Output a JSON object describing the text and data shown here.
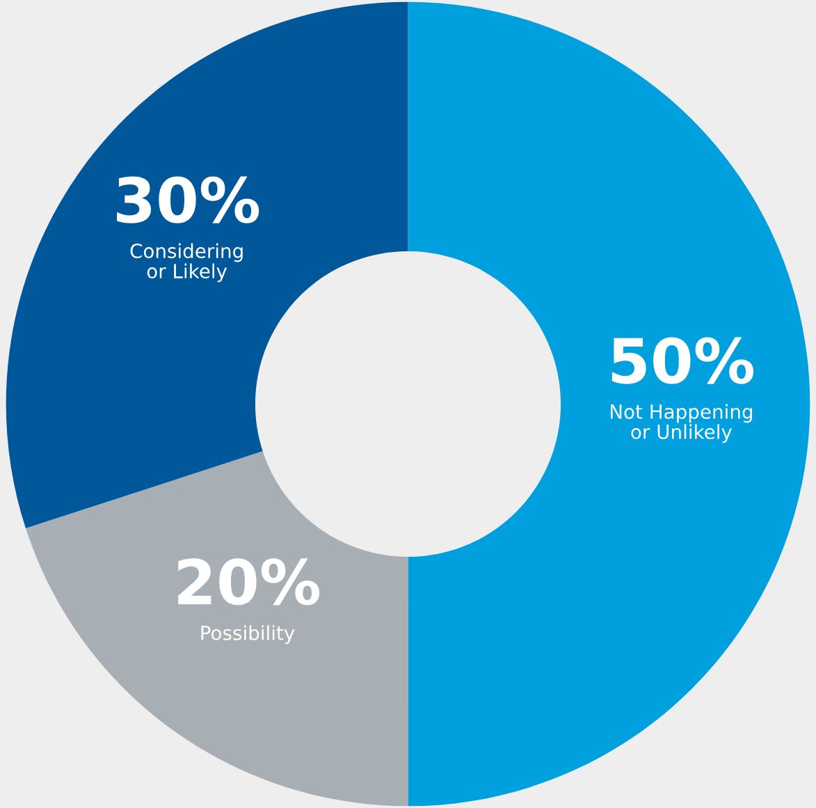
{
  "chart_data": {
    "type": "donut",
    "categories": [
      "Not Happening or Unlikely",
      "Possibility",
      "Considering or Likely"
    ],
    "values": [
      50,
      20,
      30
    ],
    "value_labels": [
      "50%",
      "20%",
      "30%"
    ],
    "colors": [
      "#00a0df",
      "#a7afb4",
      "#00579a"
    ],
    "legend": false
  }
}
